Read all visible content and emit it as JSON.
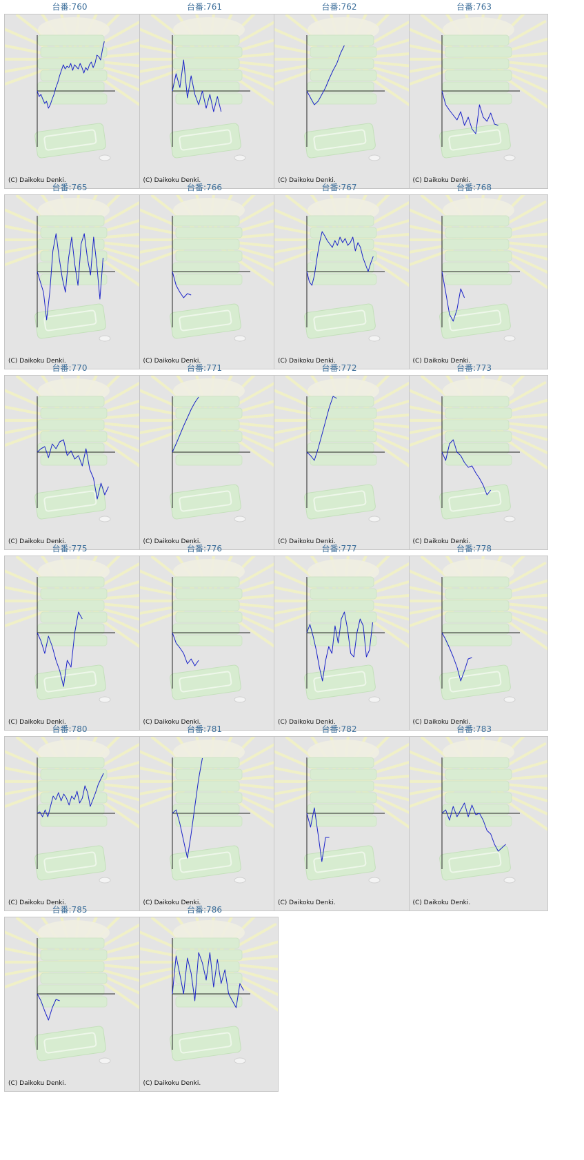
{
  "copyright": "(C) Daikoku Denki.",
  "colors": {
    "title": "#3c6e9a",
    "line": "#1a22c8",
    "axis": "#222222",
    "panel": "#e4e4e4",
    "border": "#c6c6c6"
  },
  "background_icons": [
    "sunburst-rays",
    "stacked-medal-trays",
    "coin-tray",
    "coin"
  ],
  "chart_data": [
    {
      "type": "line",
      "title": "台番:760",
      "ylim": [
        -1,
        1
      ],
      "values": [
        0,
        -0.08,
        -0.05,
        -0.12,
        -0.18,
        -0.15,
        -0.25,
        -0.2,
        -0.12,
        -0.05,
        0.05,
        0.12,
        0.22,
        0.3,
        0.38,
        0.32,
        0.36,
        0.34,
        0.4,
        0.3,
        0.38,
        0.35,
        0.32,
        0.4,
        0.34,
        0.26,
        0.34,
        0.3,
        0.38,
        0.42,
        0.34,
        0.4,
        0.52,
        0.5,
        0.45,
        0.6,
        0.72
      ]
    },
    {
      "type": "line",
      "title": "台番:761",
      "ylim": [
        -1,
        1
      ],
      "values": [
        0,
        0.25,
        0.05,
        0.45,
        -0.1,
        0.22,
        -0.05,
        -0.2,
        0.0,
        -0.25,
        -0.05,
        -0.3,
        -0.08,
        -0.3
      ]
    },
    {
      "type": "line",
      "title": "台番:762",
      "ylim": [
        -1,
        1
      ],
      "values": [
        0,
        -0.1,
        -0.2,
        -0.15,
        -0.05,
        0.05,
        0.18,
        0.3,
        0.4,
        0.55,
        0.66
      ]
    },
    {
      "type": "line",
      "title": "台番:763",
      "ylim": [
        -1,
        1
      ],
      "values": [
        0,
        -0.2,
        -0.28,
        -0.35,
        -0.42,
        -0.3,
        -0.5,
        -0.38,
        -0.55,
        -0.62,
        -0.2,
        -0.38,
        -0.44,
        -0.32,
        -0.48,
        -0.5
      ]
    },
    {
      "type": "line",
      "title": "台番:765",
      "ylim": [
        -1,
        1
      ],
      "values": [
        0,
        -0.15,
        -0.3,
        -0.7,
        -0.3,
        0.3,
        0.55,
        0.2,
        -0.1,
        -0.3,
        0.2,
        0.5,
        0.1,
        -0.2,
        0.4,
        0.55,
        0.2,
        -0.05,
        0.5,
        0.1,
        -0.4,
        0.2
      ]
    },
    {
      "type": "line",
      "title": "台番:766",
      "ylim": [
        -1,
        1
      ],
      "values": [
        0,
        -0.2,
        -0.3,
        -0.38,
        -0.32,
        -0.34
      ]
    },
    {
      "type": "line",
      "title": "台番:767",
      "ylim": [
        -1,
        1
      ],
      "values": [
        0,
        -0.15,
        -0.2,
        -0.05,
        0.2,
        0.42,
        0.58,
        0.52,
        0.45,
        0.4,
        0.35,
        0.45,
        0.38,
        0.5,
        0.42,
        0.48,
        0.38,
        0.42,
        0.5,
        0.3,
        0.42,
        0.35,
        0.2,
        0.1,
        0.0,
        0.12,
        0.22
      ]
    },
    {
      "type": "line",
      "title": "台番:768",
      "ylim": [
        -1,
        1
      ],
      "values": [
        0,
        -0.3,
        -0.62,
        -0.72,
        -0.55,
        -0.25,
        -0.38
      ]
    },
    {
      "type": "line",
      "title": "台番:770",
      "ylim": [
        -1,
        1
      ],
      "values": [
        0,
        0.05,
        0.08,
        -0.08,
        0.12,
        0.05,
        0.15,
        0.18,
        -0.05,
        0.02,
        -0.1,
        -0.05,
        -0.2,
        0.05,
        -0.25,
        -0.38,
        -0.68,
        -0.45,
        -0.62,
        -0.5
      ]
    },
    {
      "type": "line",
      "title": "台番:771",
      "ylim": [
        -1,
        1
      ],
      "values": [
        0,
        0.12,
        0.25,
        0.38,
        0.5,
        0.62,
        0.72,
        0.8
      ]
    },
    {
      "type": "line",
      "title": "台番:772",
      "ylim": [
        -1,
        1
      ],
      "values": [
        0,
        -0.05,
        -0.12,
        0.05,
        0.25,
        0.45,
        0.65,
        0.82,
        0.78
      ]
    },
    {
      "type": "line",
      "title": "台番:773",
      "ylim": [
        -1,
        1
      ],
      "values": [
        0,
        -0.12,
        0.12,
        0.18,
        0.0,
        -0.05,
        -0.15,
        -0.22,
        -0.2,
        -0.3,
        -0.38,
        -0.48,
        -0.62,
        -0.55
      ]
    },
    {
      "type": "line",
      "title": "台番:775",
      "ylim": [
        -1,
        1
      ],
      "values": [
        0,
        -0.12,
        -0.3,
        -0.05,
        -0.2,
        -0.4,
        -0.55,
        -0.78,
        -0.4,
        -0.5,
        0.0,
        0.3,
        0.2
      ]
    },
    {
      "type": "line",
      "title": "台番:776",
      "ylim": [
        -1,
        1
      ],
      "values": [
        0,
        -0.15,
        -0.22,
        -0.3,
        -0.45,
        -0.38,
        -0.48,
        -0.4
      ]
    },
    {
      "type": "line",
      "title": "台番:777",
      "ylim": [
        -1,
        1
      ],
      "values": [
        0,
        0.12,
        -0.05,
        -0.25,
        -0.5,
        -0.7,
        -0.4,
        -0.2,
        -0.3,
        0.1,
        -0.15,
        0.2,
        0.3,
        0.05,
        -0.3,
        -0.35,
        0.0,
        0.2,
        0.1,
        -0.35,
        -0.25,
        0.15
      ]
    },
    {
      "type": "line",
      "title": "台番:778",
      "ylim": [
        -1,
        1
      ],
      "values": [
        0,
        -0.1,
        -0.22,
        -0.35,
        -0.5,
        -0.7,
        -0.55,
        -0.38,
        -0.36
      ]
    },
    {
      "type": "line",
      "title": "台番:780",
      "ylim": [
        -1,
        1
      ],
      "values": [
        0,
        0.02,
        -0.05,
        0.05,
        -0.05,
        0.1,
        0.25,
        0.2,
        0.3,
        0.18,
        0.28,
        0.22,
        0.12,
        0.25,
        0.2,
        0.32,
        0.15,
        0.22,
        0.4,
        0.3,
        0.1,
        0.2,
        0.3,
        0.42,
        0.5,
        0.58
      ]
    },
    {
      "type": "line",
      "title": "台番:781",
      "ylim": [
        -1,
        1
      ],
      "values": [
        0,
        0.05,
        -0.15,
        -0.4,
        -0.65,
        -0.3,
        0.1,
        0.5,
        0.8
      ]
    },
    {
      "type": "line",
      "title": "台番:782",
      "ylim": [
        -1,
        1
      ],
      "values": [
        0,
        -0.2,
        0.08,
        -0.3,
        -0.7,
        -0.35,
        -0.35
      ]
    },
    {
      "type": "line",
      "title": "台番:783",
      "ylim": [
        -1,
        1
      ],
      "values": [
        0,
        0.05,
        -0.1,
        0.1,
        -0.05,
        0.05,
        0.15,
        -0.05,
        0.12,
        -0.02,
        0.0,
        -0.1,
        -0.25,
        -0.3,
        -0.45,
        -0.55,
        -0.5,
        -0.45
      ]
    },
    {
      "type": "line",
      "title": "台番:785",
      "ylim": [
        -1,
        1
      ],
      "values": [
        0,
        -0.1,
        -0.25,
        -0.38,
        -0.2,
        -0.08,
        -0.1
      ]
    },
    {
      "type": "line",
      "title": "台番:786",
      "ylim": [
        -1,
        1
      ],
      "values": [
        0,
        0.55,
        0.28,
        0.0,
        0.52,
        0.3,
        -0.1,
        0.6,
        0.45,
        0.2,
        0.6,
        0.1,
        0.5,
        0.15,
        0.35,
        0.0,
        -0.1,
        -0.2,
        0.15,
        0.05
      ]
    }
  ]
}
